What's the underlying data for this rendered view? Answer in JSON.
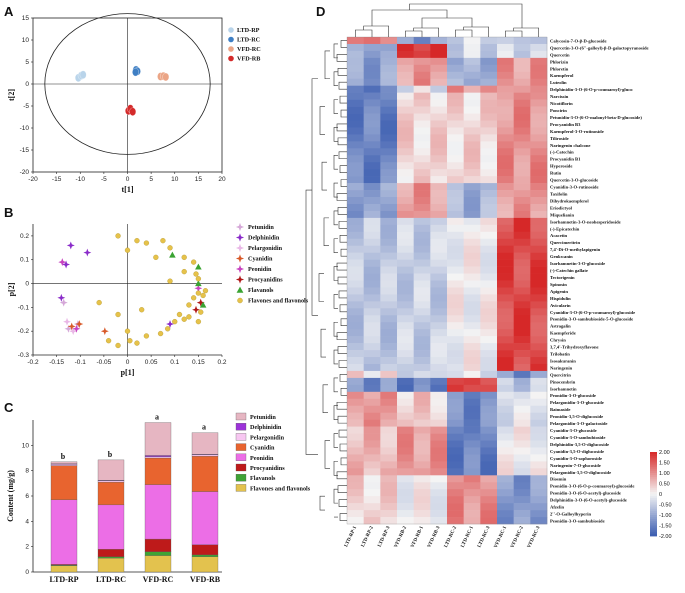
{
  "panel_labels": [
    "A",
    "B",
    "C",
    "D"
  ],
  "colors": {
    "ltd_rp": "#b9d4ea",
    "ltd_rc": "#3f7fc4",
    "vfd_rc": "#eba586",
    "vfd_rb": "#d42a2a"
  },
  "chart_data": [
    {
      "type": "scatter",
      "panel": "A",
      "xlabel": "t[1]",
      "ylabel": "t[2]",
      "xlim": [
        -20,
        20
      ],
      "ylim": [
        -20,
        15
      ],
      "xticks": [
        "-20",
        "-15",
        "-10",
        "-5",
        "0",
        "5",
        "10",
        "15",
        "20"
      ],
      "yticks": [
        "-20",
        "-15",
        "-10",
        "-5",
        "0",
        "5",
        "10",
        "15"
      ],
      "series": [
        {
          "name": "LTD-RP",
          "points": [
            [
              -10.4,
              1.4
            ],
            [
              -9.8,
              1.9
            ],
            [
              -9.4,
              2.1
            ]
          ]
        },
        {
          "name": "LTD-RC",
          "points": [
            [
              1.8,
              3.2
            ],
            [
              2.1,
              2.9
            ],
            [
              1.7,
              2.7
            ]
          ]
        },
        {
          "name": "VFD-RC",
          "points": [
            [
              7.0,
              1.7
            ],
            [
              7.6,
              1.8
            ],
            [
              8.1,
              1.6
            ]
          ]
        },
        {
          "name": "VFD-RB",
          "points": [
            [
              0.2,
              -6.1
            ],
            [
              0.6,
              -5.6
            ],
            [
              1.1,
              -6.3
            ]
          ]
        }
      ]
    },
    {
      "type": "scatter",
      "panel": "B",
      "xlabel": "p[1]",
      "ylabel": "p[2]",
      "xlim": [
        -0.2,
        0.2
      ],
      "ylim": [
        -0.3,
        0.25
      ],
      "xticks": [
        "-0.2",
        "-0.15",
        "-0.1",
        "-0.05",
        "0",
        "0.05",
        "0.1",
        "0.15",
        "0.2"
      ],
      "yticks": [
        "-0.3",
        "-0.2",
        "-0.1",
        "0",
        "0.1",
        "0.2"
      ],
      "series": [
        {
          "name": "Petunidin",
          "points": [
            [
              -0.135,
              -0.08
            ],
            [
              -0.125,
              -0.19
            ],
            [
              -0.105,
              -0.17
            ]
          ]
        },
        {
          "name": "Delphinidin",
          "points": [
            [
              -0.14,
              -0.06
            ],
            [
              -0.13,
              0.08
            ],
            [
              -0.12,
              0.16
            ],
            [
              -0.085,
              0.13
            ],
            [
              0.09,
              -0.17
            ]
          ]
        },
        {
          "name": "Pelargonidin",
          "points": [
            [
              -0.128,
              -0.16
            ],
            [
              -0.115,
              -0.2
            ]
          ]
        },
        {
          "name": "Cyanidin",
          "points": [
            [
              -0.118,
              -0.18
            ],
            [
              -0.102,
              -0.17
            ],
            [
              -0.048,
              -0.2
            ]
          ]
        },
        {
          "name": "Peonidin",
          "points": [
            [
              -0.138,
              0.09
            ],
            [
              -0.108,
              -0.19
            ],
            [
              0.15,
              -0.02
            ]
          ]
        },
        {
          "name": "Procyanidins",
          "points": [
            [
              0.145,
              -0.11
            ],
            [
              0.155,
              -0.08
            ]
          ]
        },
        {
          "name": "Flavanols",
          "points": [
            [
              0.095,
              0.12
            ],
            [
              0.15,
              0.07
            ],
            [
              0.15,
              0.0
            ],
            [
              0.16,
              -0.09
            ]
          ]
        },
        {
          "name": "Flavones and flavonols",
          "points": [
            [
              -0.02,
              0.2
            ],
            [
              0.0,
              0.14
            ],
            [
              0.02,
              0.18
            ],
            [
              0.04,
              0.17
            ],
            [
              0.06,
              0.11
            ],
            [
              0.075,
              0.18
            ],
            [
              0.09,
              0.15
            ],
            [
              0.12,
              0.11
            ],
            [
              0.14,
              0.09
            ],
            [
              0.145,
              0.04
            ],
            [
              0.15,
              0.02
            ],
            [
              0.15,
              -0.04
            ],
            [
              0.14,
              -0.06
            ],
            [
              0.16,
              -0.05
            ],
            [
              0.13,
              -0.09
            ],
            [
              0.155,
              -0.12
            ],
            [
              0.12,
              -0.15
            ],
            [
              0.1,
              -0.16
            ],
            [
              0.085,
              -0.19
            ],
            [
              0.07,
              -0.21
            ],
            [
              0.04,
              -0.22
            ],
            [
              0.02,
              -0.25
            ],
            [
              0.005,
              -0.24
            ],
            [
              -0.02,
              -0.26
            ],
            [
              -0.04,
              -0.24
            ],
            [
              -0.06,
              -0.08
            ],
            [
              -0.02,
              -0.13
            ],
            [
              0.0,
              -0.2
            ],
            [
              0.03,
              -0.11
            ],
            [
              0.11,
              -0.13
            ],
            [
              0.13,
              -0.14
            ],
            [
              0.15,
              -0.16
            ],
            [
              0.165,
              -0.03
            ],
            [
              0.12,
              0.05
            ],
            [
              0.09,
              0.01
            ]
          ]
        }
      ]
    },
    {
      "type": "bar",
      "stacked": true,
      "panel": "C",
      "ylabel": "Content (mg/g)",
      "ylim": [
        0,
        12
      ],
      "categories": [
        "LTD-RP",
        "LTD-RC",
        "VFD-RC",
        "VFD-RB"
      ],
      "yticks": [
        "0",
        "2",
        "4",
        "6",
        "8",
        "10"
      ],
      "significance": [
        "b",
        "b",
        "a",
        "a"
      ],
      "series": [
        {
          "name": "Flavones and flavonols",
          "values": [
            0.5,
            1.1,
            1.3,
            1.2
          ]
        },
        {
          "name": "Flavanols",
          "values": [
            0.05,
            0.1,
            0.3,
            0.15
          ]
        },
        {
          "name": "Procyanidins",
          "values": [
            0.05,
            0.6,
            1.0,
            0.8
          ]
        },
        {
          "name": "Peonidin",
          "values": [
            5.1,
            3.5,
            4.3,
            4.2
          ]
        },
        {
          "name": "Cyanidin",
          "values": [
            2.7,
            1.8,
            2.1,
            2.8
          ]
        },
        {
          "name": "Pelargonidin",
          "values": [
            0.1,
            0.1,
            0.1,
            0.1
          ]
        },
        {
          "name": "Delphinidin",
          "values": [
            0.05,
            0.05,
            0.1,
            0.05
          ]
        },
        {
          "name": "Petunidin",
          "values": [
            0.15,
            1.6,
            2.6,
            1.7
          ]
        }
      ],
      "series_colors": [
        "#e3c24e",
        "#3fa335",
        "#be1a1a",
        "#ec6ee6",
        "#e8642f",
        "#f7c7f1",
        "#9c33d9",
        "#e6b6c2"
      ]
    },
    {
      "type": "heatmap",
      "panel": "D",
      "columns": [
        "LTD-RP-1",
        "LTD-RP-2",
        "LTD-RP-3",
        "VFD-RB-2",
        "VFD-RB-1",
        "VFD-RB-3",
        "LTD-RC-2",
        "LTD-RC-1",
        "LTD-RC-3",
        "VFD-RC-1",
        "VFD-RC-2",
        "VFD-RC-3"
      ],
      "rows": [
        "Calycosin-7-O-β-D-glucoside",
        "Quercetin-3-O-(6''-galloyl)-β-D-galactopyranoside",
        "Quercetin",
        "Phlorizin",
        "Phloretin",
        "Kaempferol",
        "Luteolin",
        "Delphinidin-3-O-(6-O-p-coumaroyl)-gluco",
        "Narcissin",
        "Nicotiflorin",
        "Poncirin",
        "Petunidin-3-O-(6-O-malonyl-beta-D-glucoside)",
        "Procyanidin B3",
        "Kaempferol-3-O-rutinoside",
        "Tiliroside",
        "Naringenin chalcone",
        "(-)-Catechin",
        "Procyanidin B1",
        "Hyperoside",
        "Rutin",
        "Quercetin-3-O-glucoside",
        "Cyanidin-3-O-rutinoside",
        "Taxifolin",
        "Dihydrokaempferol",
        "Eriodictyol",
        "Miquelianin",
        "Isorhamnetin-3-O-neohesperidoside",
        "(-)-Epicatechin",
        "Acacetin",
        "Quercimeritrin",
        "7,4'-Di-O-methylapigenin",
        "Genkwanin",
        "Isorhamnetin-3-O-glucoside",
        "(-)-Catechin gallate",
        "Tectorigenin",
        "Spinosin",
        "Apigenin",
        "Hispidulin",
        "Avicularin",
        "Cyanidin-3-O-(6-O-p-coumaroyl)-glucoside",
        "Peonidin-3-O-sambubioside-5-O-glucoside",
        "Astragalin",
        "Kaempferide",
        "Chrysin",
        "3,7,4'-Trihydroxyflavone",
        "Trilobatin",
        "Isosakuranin",
        "Naringenin",
        "Quercitrin",
        "Pinocembrin",
        "Isorhamnetin",
        "Peonidin-3-O-glucoside",
        "Pelargonidin-3-O-glucoside",
        "Baimaside",
        "Peonidin-3,5-O-diglucoside",
        "Pelargonidin-3-O-galactoside",
        "Cyanidin-3-O-glucoside",
        "Cyanidin-3-O-sambubioside",
        "Delphinidin-3,5-O-diglucoside",
        "Cyanidin-3,5-O-diglucoside",
        "Cyanidin-3-O-sophoroside",
        "Naringenin-7-O-glucoside",
        "Pelargonidin-3,5-O-diglucoside",
        "Diosmin",
        "Peonidin-3-O-(6-O-p-coumaroyl)-glucoside",
        "Peonidin-3-O-(6-O-acetyl)-glucoside",
        "Delphinidin-3-O-(6-O-acetyl)-glucoside",
        "Afzelin",
        "2''-O-Galloylhyperin",
        "Peonidin-3-O-sambubioside"
      ],
      "color_scale_ticks": [
        "2.00",
        "1.50",
        "1.00",
        "0.50",
        "0",
        "-0.50",
        "-1.00",
        "-1.50",
        "-2.00"
      ],
      "color_range": [
        -2,
        2
      ]
    }
  ],
  "legend_B": [
    "Petunidin",
    "Delphinidin",
    "Pelargonidin",
    "Cyanidin",
    "Peonidin",
    "Procyanidins",
    "Flavanols",
    "Flavones and flavonols"
  ],
  "legend_C": [
    "Petunidin",
    "Delphinidin",
    "Pelargonidin",
    "Cyanidin",
    "Peonidin",
    "Procyanidins",
    "Flavanols",
    "Flavones and flavonols"
  ]
}
